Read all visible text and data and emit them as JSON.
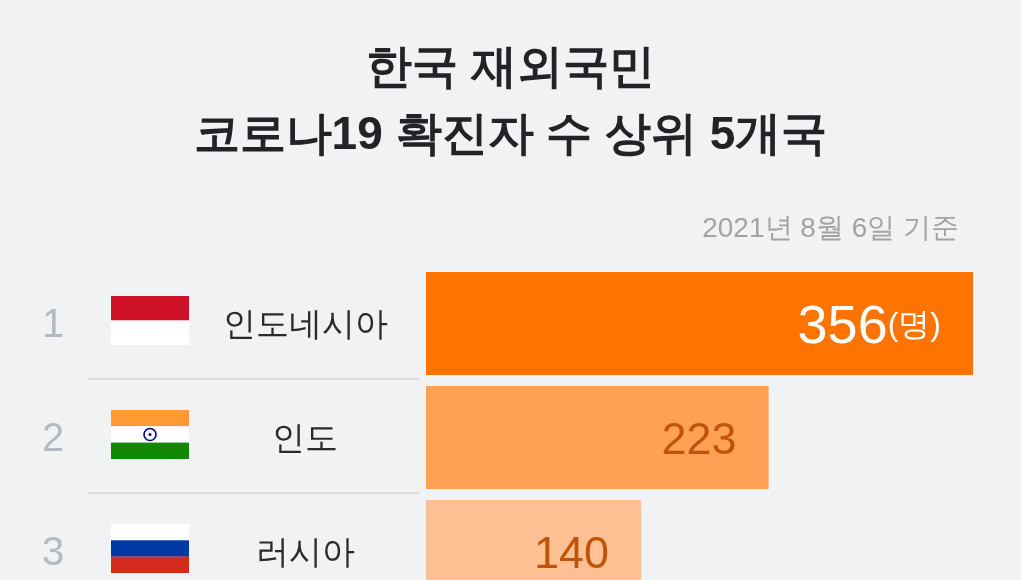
{
  "chart_data": {
    "type": "bar",
    "orientation": "horizontal",
    "title": "한국 재외국민\n코로나19 확진자 수 상위 5개국",
    "subtitle": "2021년 8월 6일 기준",
    "categories": [
      "인도네시아",
      "인도",
      "러시아"
    ],
    "values": [
      356,
      223,
      140
    ],
    "colors": [
      "#ff7300",
      "#ffa154",
      "#ffc193"
    ],
    "value_labels": [
      "356(명)",
      "223",
      "140"
    ],
    "annotations": [
      "1",
      "2",
      "3"
    ]
  }
}
